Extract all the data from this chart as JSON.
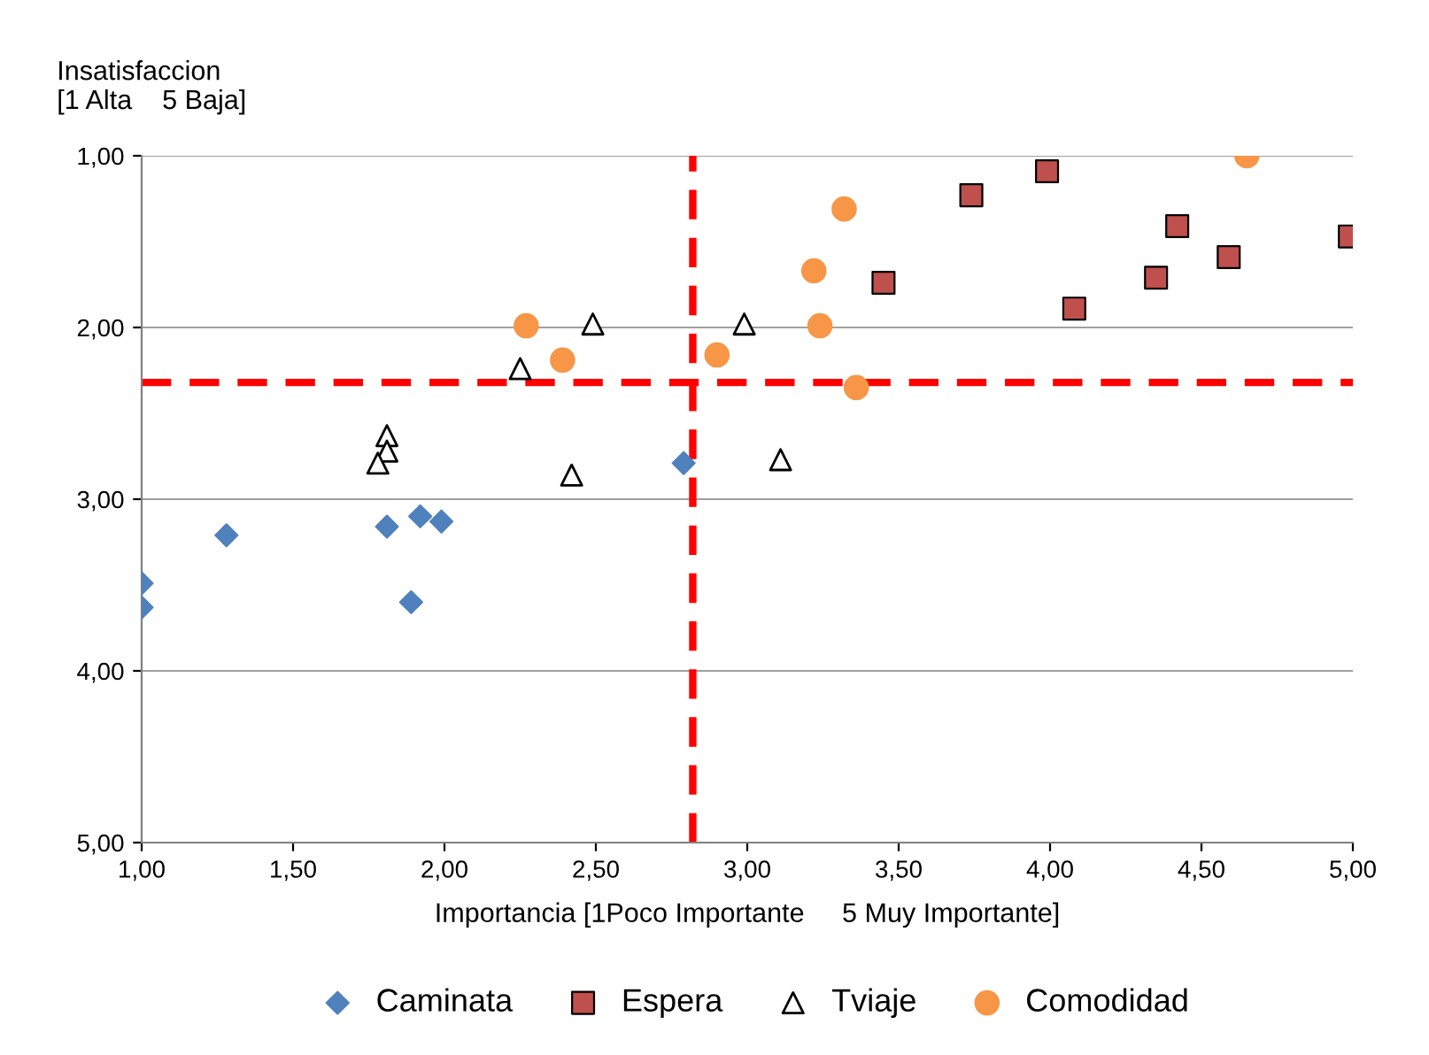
{
  "chart_data": {
    "type": "scatter",
    "xlabel": "Importancia [1Poco Importante     5 Muy Importante]",
    "ylabel": "Insatisfaccion\n[1 Alta    5 Baja]",
    "xlim": [
      1,
      5
    ],
    "ylim": [
      5,
      1
    ],
    "xticks": [
      {
        "value": 1,
        "label": "1,00"
      },
      {
        "value": 1.5,
        "label": "1,50"
      },
      {
        "value": 2,
        "label": "2,00"
      },
      {
        "value": 2.5,
        "label": "2,50"
      },
      {
        "value": 3,
        "label": "3,00"
      },
      {
        "value": 3.5,
        "label": "3,50"
      },
      {
        "value": 4,
        "label": "4,00"
      },
      {
        "value": 4.5,
        "label": "4,50"
      },
      {
        "value": 5,
        "label": "5,00"
      }
    ],
    "yticks": [
      {
        "value": 1,
        "label": "1,00"
      },
      {
        "value": 2,
        "label": "2,00"
      },
      {
        "value": 3,
        "label": "3,00"
      },
      {
        "value": 4,
        "label": "4,00"
      },
      {
        "value": 5,
        "label": "5,00"
      }
    ],
    "grid": "y",
    "legend": "bottom",
    "series": [
      {
        "name": "Caminata",
        "color": "#4f81bd",
        "marker": "diamond",
        "x": [
          1.0,
          1.0,
          1.28,
          1.81,
          1.92,
          1.99,
          1.89,
          2.79
        ],
        "values": [
          3.49,
          3.63,
          3.21,
          3.16,
          3.1,
          3.13,
          3.6,
          2.79
        ]
      },
      {
        "name": "Espera",
        "color": "#c0504d",
        "marker": "square",
        "x": [
          3.45,
          3.74,
          3.99,
          4.08,
          4.35,
          4.42,
          4.59,
          4.99
        ],
        "values": [
          1.74,
          1.23,
          1.09,
          1.89,
          1.71,
          1.41,
          1.59,
          1.47
        ]
      },
      {
        "name": "Tviaje",
        "color": "#000000",
        "marker": "triangle",
        "x": [
          2.25,
          2.49,
          2.99,
          1.81,
          1.81,
          1.78,
          2.42,
          3.11
        ],
        "values": [
          2.24,
          1.98,
          1.98,
          2.63,
          2.72,
          2.79,
          2.86,
          2.77
        ]
      },
      {
        "name": "Comodidad",
        "color": "#f79646",
        "marker": "circle",
        "x": [
          2.27,
          2.39,
          2.9,
          3.22,
          3.24,
          3.32,
          3.36,
          4.65
        ],
        "values": [
          1.99,
          2.19,
          2.16,
          1.67,
          1.99,
          1.31,
          2.35,
          1.0
        ]
      }
    ],
    "ref_lines": [
      {
        "axis": "y",
        "value": 2.32,
        "color": "#ff0000",
        "line_style": "dashed"
      },
      {
        "axis": "x",
        "value": 2.82,
        "color": "#ff0000",
        "line_style": "dashed"
      }
    ]
  }
}
